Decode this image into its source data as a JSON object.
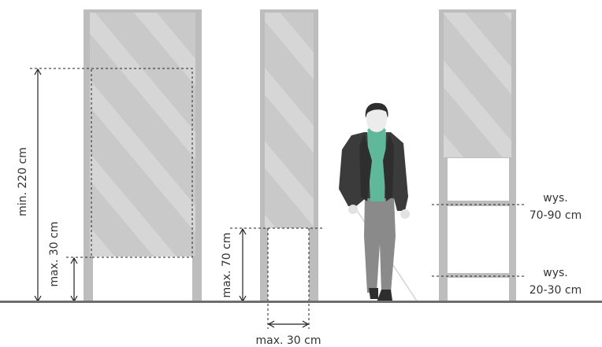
{
  "labels": {
    "min_height": "min. 220 cm",
    "max_bottom_1": "max. 30 cm",
    "max_bottom_2": "max. 70 cm",
    "max_width": "max. 30 cm",
    "wys_1_line1": "wys.",
    "wys_1_line2": "70-90 cm",
    "wys_2_line1": "wys.",
    "wys_2_line2": "20-30 cm"
  },
  "colors": {
    "panel": "#c8c8c8",
    "panel_stripe": "#d9d9d9",
    "panel_frame": "#bcbcbc",
    "ground": "#6e6e6e",
    "dimension": "#222222",
    "jacket": "#3b3b3b",
    "shirt": "#5fb89a",
    "trousers": "#8a8a8a",
    "skin": "#ececec"
  },
  "icons": {
    "person": "person-with-white-cane-icon"
  }
}
